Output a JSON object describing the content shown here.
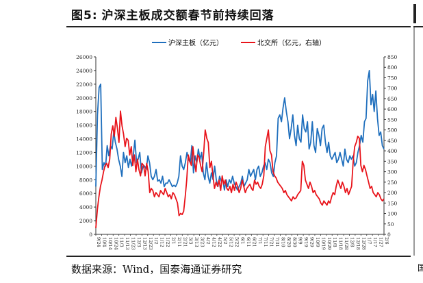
{
  "figure": {
    "number": "图5:",
    "title": "沪深主板成交额春节前持续回落",
    "source": "数据来源：Wind，国泰海通证券研究",
    "source_stub": "国"
  },
  "colors": {
    "main": "#1f6fbd",
    "bse": "#e8141b",
    "axis": "#333333"
  },
  "chart_data": {
    "type": "line",
    "title": "沪深主板成交额春节前持续回落",
    "legend": [
      "沪深主板（亿元）",
      "北交所（亿元，右轴）"
    ],
    "legend_position": "top-center",
    "y_left": {
      "label": "沪深主板（亿元）",
      "min": 0,
      "max": 26000,
      "step": 2000,
      "ticks": [
        "0",
        "2000",
        "4000",
        "6000",
        "8000",
        "10000",
        "12000",
        "14000",
        "16000",
        "18000",
        "20000",
        "22000",
        "24000",
        "26000"
      ]
    },
    "y_right": {
      "label": "北交所（亿元，右轴）",
      "min": 0,
      "max": 850,
      "step": 50,
      "ticks": [
        "0",
        "50",
        "100",
        "150",
        "200",
        "250",
        "300",
        "350",
        "400",
        "450",
        "500",
        "550",
        "600",
        "650",
        "700",
        "750",
        "800",
        "850"
      ]
    },
    "x_ticks": [
      "9/24",
      "10/4",
      "10/14",
      "10/24",
      "11/3",
      "11/13",
      "11/23",
      "12/3",
      "12/13",
      "12/23",
      "1/2",
      "1/12",
      "1/22",
      "2/1",
      "2/11",
      "2/21",
      "3/3",
      "3/13",
      "3/23",
      "4/2",
      "4/12",
      "4/22",
      "5/2",
      "5/12",
      "5/22",
      "6/1",
      "6/11",
      "6/21",
      "7/1",
      "7/11",
      "7/21",
      "7/31",
      "8/10",
      "8/20",
      "8/30",
      "9/9",
      "9/19",
      "9/29",
      "10/9",
      "10/19",
      "10/29",
      "11/8",
      "11/18",
      "11/28",
      "12/8",
      "12/18",
      "12/28",
      "1/7",
      "1/17",
      "1/27",
      "2/6"
    ],
    "series": [
      {
        "name": "沪深主板（亿元）",
        "axis": "left",
        "values": [
          7000,
          17500,
          21500,
          22000,
          9500,
          10500,
          10000,
          13000,
          11500,
          13000,
          12500,
          15000,
          13500,
          12500,
          11000,
          10000,
          8500,
          12000,
          10500,
          11500,
          9800,
          11000,
          10000,
          11500,
          13800,
          10500,
          11000,
          12000,
          9000,
          10000,
          10000,
          9500,
          11500,
          10500,
          8500,
          8000,
          8500,
          9500,
          7800,
          8000,
          7500,
          8500,
          7000,
          7500,
          7500,
          8000,
          7500,
          7000,
          7200,
          7000,
          7500,
          8500,
          11500,
          10000,
          9500,
          10500,
          12000,
          11000,
          10500,
          13000,
          9000,
          11500,
          10500,
          12500,
          11000,
          12000,
          9000,
          8000,
          10500,
          8500,
          7500,
          9000,
          8000,
          10000,
          8000,
          7000,
          8500,
          7800,
          8000,
          6500,
          8000,
          7000,
          8000,
          7500,
          8500,
          7500,
          7000,
          6500,
          7000,
          7500,
          8500,
          7000,
          7500,
          8000,
          9500,
          8500,
          9000,
          9500,
          8000,
          9500,
          10000,
          8500,
          9000,
          10000,
          10500,
          9500,
          11000,
          10500,
          9000,
          8500,
          10500,
          11500,
          17000,
          17500,
          16500,
          18500,
          20000,
          18000,
          16500,
          14000,
          15500,
          17500,
          14500,
          13000,
          16000,
          14000,
          13500,
          17500,
          15500,
          15000,
          16500,
          12500,
          13500,
          16500,
          13000,
          12000,
          15500,
          14500,
          13000,
          15500,
          16000,
          13500,
          12000,
          13500,
          11500,
          11000,
          11500,
          12000,
          10500,
          11000,
          12000,
          11000,
          10000,
          12500,
          11000,
          10500,
          11500,
          11000,
          11500,
          10000,
          10500,
          12000,
          13000,
          14500,
          13500,
          16500,
          17000,
          22500,
          24000,
          19000,
          20500,
          18000,
          21000,
          17000,
          14500,
          15000,
          13000,
          12500
        ]
      },
      {
        "name": "北交所（亿元，右轴）",
        "axis": "right",
        "values": [
          30,
          120,
          180,
          230,
          260,
          300,
          330,
          340,
          320,
          360,
          480,
          520,
          470,
          560,
          510,
          440,
          590,
          520,
          480,
          420,
          460,
          450,
          380,
          420,
          330,
          380,
          300,
          360,
          310,
          280,
          340,
          330,
          280,
          340,
          300,
          200,
          220,
          210,
          180,
          200,
          190,
          180,
          210,
          200,
          190,
          220,
          200,
          180,
          190,
          170,
          200,
          190,
          170,
          150,
          90,
          100,
          95,
          110,
          180,
          260,
          380,
          350,
          330,
          420,
          350,
          300,
          380,
          370,
          330,
          300,
          390,
          500,
          460,
          440,
          320,
          350,
          280,
          220,
          250,
          230,
          260,
          210,
          280,
          240,
          260,
          220,
          210,
          230,
          200,
          240,
          210,
          250,
          230,
          200,
          220,
          260,
          230,
          200,
          220,
          230,
          240,
          220,
          210,
          260,
          240,
          250,
          230,
          220,
          240,
          280,
          420,
          460,
          500,
          400,
          380,
          300,
          280,
          270,
          250,
          240,
          230,
          220,
          200,
          210,
          190,
          180,
          170,
          160,
          180,
          170,
          175,
          190,
          200,
          210,
          350,
          330,
          260,
          240,
          220,
          250,
          230,
          200,
          210,
          190,
          180,
          170,
          150,
          140,
          160,
          150,
          140,
          160,
          150,
          180,
          200,
          190,
          230,
          260,
          240,
          220,
          250,
          230,
          200,
          220,
          190,
          210,
          230,
          350,
          420,
          440,
          470,
          460,
          330,
          300,
          330,
          310,
          280,
          250,
          220,
          230,
          200,
          190,
          180,
          200,
          190,
          170,
          160,
          170
        ]
      }
    ]
  }
}
